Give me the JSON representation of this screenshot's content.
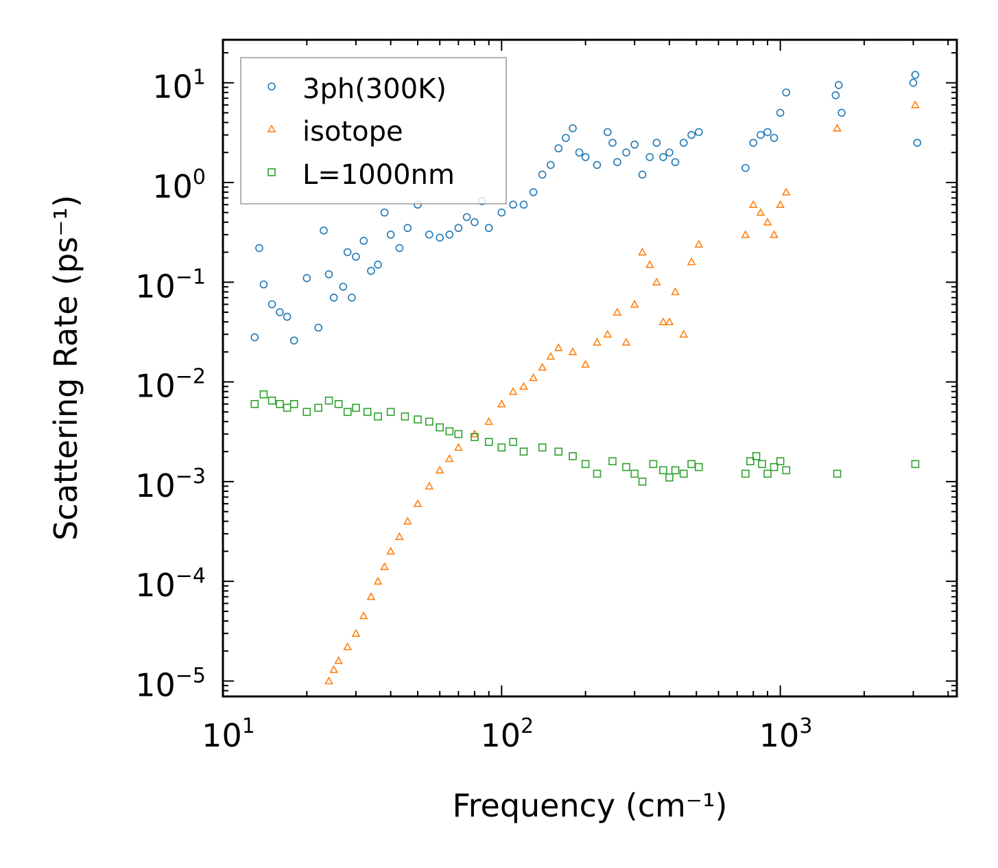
{
  "chart_data": {
    "type": "scatter",
    "xlabel": "Frequency (cm⁻¹)",
    "ylabel": "Scattering Rate (ps⁻¹)",
    "xscale": "log",
    "yscale": "log",
    "xlim": [
      10,
      4300
    ],
    "ylim": [
      7e-06,
      27
    ],
    "xticks": [
      {
        "base": "10",
        "exp": "1",
        "value": 10
      },
      {
        "base": "10",
        "exp": "2",
        "value": 100
      },
      {
        "base": "10",
        "exp": "3",
        "value": 1000
      }
    ],
    "yticks": [
      {
        "base": "10",
        "exp": "1",
        "value": 10
      },
      {
        "base": "10",
        "exp": "0",
        "value": 1
      },
      {
        "base": "10",
        "exp": "−1",
        "value": 0.1
      },
      {
        "base": "10",
        "exp": "−2",
        "value": 0.01
      },
      {
        "base": "10",
        "exp": "−3",
        "value": 0.001
      },
      {
        "base": "10",
        "exp": "−4",
        "value": 0.0001
      },
      {
        "base": "10",
        "exp": "−5",
        "value": 1e-05
      }
    ],
    "legend": {
      "location": "top-left",
      "entries": [
        "3ph(300K)",
        "isotope",
        "L=1000nm"
      ]
    },
    "series": [
      {
        "name": "3ph(300K)",
        "marker": "circle",
        "color": "#1f77b4",
        "x": [
          13,
          13.5,
          14,
          15,
          16,
          17,
          18,
          20,
          22,
          23,
          24,
          25,
          27,
          28,
          29,
          30,
          32,
          34,
          36,
          38,
          40,
          43,
          46,
          50,
          55,
          60,
          65,
          70,
          75,
          80,
          85,
          90,
          100,
          110,
          120,
          130,
          140,
          150,
          160,
          170,
          180,
          190,
          200,
          220,
          240,
          250,
          260,
          280,
          300,
          320,
          340,
          360,
          380,
          400,
          420,
          450,
          480,
          510,
          750,
          800,
          850,
          900,
          950,
          1000,
          1050,
          1580,
          1620,
          1660,
          3000,
          3050,
          3100
        ],
        "y": [
          0.028,
          0.22,
          0.095,
          0.06,
          0.05,
          0.045,
          0.026,
          0.11,
          0.035,
          0.33,
          0.12,
          0.07,
          0.09,
          0.2,
          0.07,
          0.18,
          0.26,
          0.13,
          0.15,
          0.5,
          0.3,
          0.22,
          0.35,
          0.6,
          0.3,
          0.28,
          0.3,
          0.35,
          0.45,
          0.4,
          0.65,
          0.35,
          0.5,
          0.6,
          0.6,
          0.8,
          1.2,
          1.5,
          2.2,
          2.8,
          3.5,
          2.0,
          1.8,
          1.5,
          3.2,
          2.5,
          1.6,
          2.0,
          2.4,
          1.2,
          1.8,
          2.5,
          1.8,
          2.0,
          1.6,
          2.5,
          3.0,
          3.2,
          1.4,
          2.5,
          3.0,
          3.2,
          2.8,
          5.0,
          8.0,
          7.5,
          9.5,
          5.0,
          10.0,
          12.0,
          2.5
        ]
      },
      {
        "name": "isotope",
        "marker": "triangle",
        "color": "#ff7f0e",
        "x": [
          24,
          25,
          26,
          28,
          30,
          32,
          34,
          36,
          38,
          40,
          43,
          46,
          50,
          55,
          60,
          65,
          70,
          80,
          90,
          100,
          110,
          120,
          130,
          140,
          150,
          160,
          180,
          200,
          220,
          240,
          260,
          280,
          300,
          320,
          340,
          360,
          380,
          400,
          420,
          450,
          480,
          510,
          750,
          800,
          850,
          900,
          950,
          1000,
          1050,
          1600,
          3050
        ],
        "y": [
          1e-05,
          1.3e-05,
          1.6e-05,
          2.2e-05,
          3e-05,
          4.5e-05,
          7e-05,
          0.0001,
          0.00014,
          0.0002,
          0.00028,
          0.0004,
          0.0006,
          0.0009,
          0.0013,
          0.0017,
          0.0022,
          0.003,
          0.004,
          0.006,
          0.008,
          0.009,
          0.011,
          0.014,
          0.018,
          0.022,
          0.02,
          0.015,
          0.025,
          0.03,
          0.05,
          0.025,
          0.06,
          0.2,
          0.15,
          0.1,
          0.04,
          0.04,
          0.08,
          0.03,
          0.16,
          0.24,
          0.3,
          0.6,
          0.5,
          0.4,
          0.3,
          0.6,
          0.8,
          3.5,
          6.0
        ]
      },
      {
        "name": "L=1000nm",
        "marker": "square",
        "color": "#2ca02c",
        "x": [
          13,
          14,
          15,
          16,
          17,
          18,
          20,
          22,
          24,
          26,
          28,
          30,
          33,
          36,
          40,
          45,
          50,
          55,
          60,
          65,
          70,
          80,
          90,
          100,
          110,
          120,
          140,
          160,
          180,
          200,
          220,
          250,
          280,
          300,
          320,
          350,
          380,
          400,
          420,
          450,
          480,
          510,
          750,
          780,
          820,
          860,
          900,
          950,
          1000,
          1050,
          1600,
          3050
        ],
        "y": [
          0.006,
          0.0075,
          0.0065,
          0.006,
          0.0055,
          0.006,
          0.005,
          0.0055,
          0.0065,
          0.006,
          0.005,
          0.0055,
          0.005,
          0.0045,
          0.005,
          0.0045,
          0.0042,
          0.004,
          0.0035,
          0.0032,
          0.003,
          0.0028,
          0.0025,
          0.0022,
          0.0025,
          0.002,
          0.0022,
          0.002,
          0.0018,
          0.0015,
          0.0012,
          0.0016,
          0.0014,
          0.0012,
          0.001,
          0.0015,
          0.0013,
          0.0011,
          0.0013,
          0.0012,
          0.0015,
          0.0014,
          0.0012,
          0.0016,
          0.0018,
          0.0015,
          0.0012,
          0.0014,
          0.0016,
          0.0013,
          0.0012,
          0.0015
        ]
      }
    ]
  }
}
